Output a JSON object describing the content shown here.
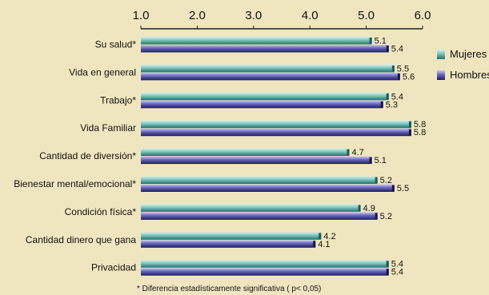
{
  "chart_data": {
    "type": "bar",
    "orientation": "horizontal",
    "categories": [
      "Su salud*",
      "Vida en general",
      "Trabajo*",
      "Vida Familiar",
      "Cantidad de diversión*",
      "Bienestar mental/emocional*",
      "Condición física*",
      "Cantidad dinero que gana",
      "Privacidad"
    ],
    "series": [
      {
        "name": "Mujeres",
        "color": "#2f8f8a",
        "values": [
          5.1,
          5.5,
          5.4,
          5.8,
          4.7,
          5.2,
          4.9,
          4.2,
          5.4
        ]
      },
      {
        "name": "Hombres",
        "color": "#2c2c7a",
        "values": [
          5.4,
          5.6,
          5.3,
          5.8,
          5.1,
          5.5,
          5.2,
          4.1,
          5.4
        ]
      }
    ],
    "xlim": [
      1.0,
      6.0
    ],
    "xticks": [
      "1.0",
      "2.0",
      "3.0",
      "4.0",
      "5.0",
      "6.0"
    ],
    "axis_position": "top",
    "grid": false,
    "legend_position": "right",
    "footnote": "* Diferencia estadísticamente significativa ( p< 0,05)"
  },
  "colors": {
    "background": "#efe6c0",
    "axis": "#222222"
  }
}
